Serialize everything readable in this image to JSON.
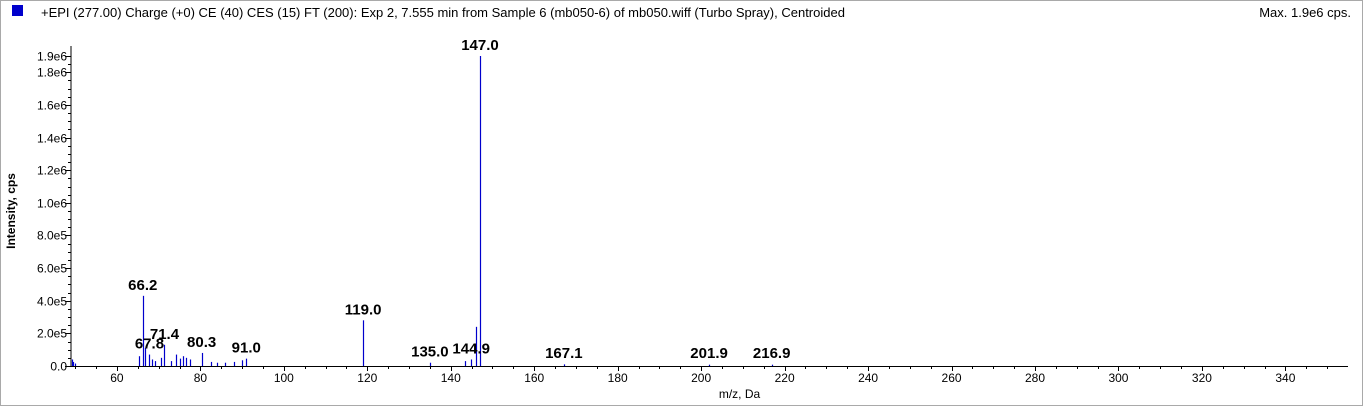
{
  "header": {
    "title": "+EPI (277.00) Charge (+0) CE (40) CES (15) FT (200): Exp 2, 7.555 min from Sample 6 (mb050-6) of mb050.wiff (Turbo Spray), Centroided",
    "max_label": "Max. 1.9e6 cps.",
    "series_color": "#0000cc"
  },
  "chart_data": {
    "type": "bar",
    "title": "+EPI (277.00) Charge (+0) CE (40) CES (15) FT (200): Exp 2, 7.555 min from Sample 6 (mb050-6) of mb050.wiff (Turbo Spray), Centroided",
    "xlabel": "m/z, Da",
    "ylabel": "Intensity, cps",
    "xlim": [
      49,
      355
    ],
    "ylim": [
      0,
      1900000
    ],
    "x_ticks": [
      60,
      80,
      100,
      120,
      140,
      160,
      180,
      200,
      220,
      240,
      260,
      280,
      300,
      320,
      340
    ],
    "y_ticks": [
      {
        "value": 0,
        "label": "0.0"
      },
      {
        "value": 200000,
        "label": "2.0e5"
      },
      {
        "value": 400000,
        "label": "4.0e5"
      },
      {
        "value": 600000,
        "label": "6.0e5"
      },
      {
        "value": 800000,
        "label": "8.0e5"
      },
      {
        "value": 1000000,
        "label": "1.0e6"
      },
      {
        "value": 1200000,
        "label": "1.2e6"
      },
      {
        "value": 1400000,
        "label": "1.4e6"
      },
      {
        "value": 1600000,
        "label": "1.6e6"
      },
      {
        "value": 1800000,
        "label": "1.8e6"
      },
      {
        "value": 1900000,
        "label": "1.9e6"
      }
    ],
    "peaks": [
      {
        "mz": 49.2,
        "intensity": 40000
      },
      {
        "mz": 49.5,
        "intensity": 25000
      },
      {
        "mz": 50.0,
        "intensity": 15000
      },
      {
        "mz": 65.2,
        "intensity": 60000
      },
      {
        "mz": 66.2,
        "intensity": 430000
      },
      {
        "mz": 66.8,
        "intensity": 110000
      },
      {
        "mz": 67.8,
        "intensity": 70000
      },
      {
        "mz": 68.4,
        "intensity": 40000
      },
      {
        "mz": 69.1,
        "intensity": 30000
      },
      {
        "mz": 70.5,
        "intensity": 50000
      },
      {
        "mz": 71.4,
        "intensity": 130000
      },
      {
        "mz": 73.0,
        "intensity": 30000
      },
      {
        "mz": 74.2,
        "intensity": 70000
      },
      {
        "mz": 75.0,
        "intensity": 45000
      },
      {
        "mz": 75.8,
        "intensity": 60000
      },
      {
        "mz": 76.6,
        "intensity": 50000
      },
      {
        "mz": 77.5,
        "intensity": 40000
      },
      {
        "mz": 80.3,
        "intensity": 80000
      },
      {
        "mz": 82.5,
        "intensity": 25000
      },
      {
        "mz": 84.0,
        "intensity": 20000
      },
      {
        "mz": 86.0,
        "intensity": 20000
      },
      {
        "mz": 88.0,
        "intensity": 25000
      },
      {
        "mz": 90.0,
        "intensity": 35000
      },
      {
        "mz": 91.0,
        "intensity": 45000
      },
      {
        "mz": 119.0,
        "intensity": 280000
      },
      {
        "mz": 135.0,
        "intensity": 20000
      },
      {
        "mz": 143.5,
        "intensity": 30000
      },
      {
        "mz": 144.9,
        "intensity": 40000
      },
      {
        "mz": 146.0,
        "intensity": 240000
      },
      {
        "mz": 147.0,
        "intensity": 1900000
      },
      {
        "mz": 167.1,
        "intensity": 10000
      },
      {
        "mz": 201.9,
        "intensity": 8000
      },
      {
        "mz": 216.9,
        "intensity": 8000
      }
    ],
    "labels": [
      {
        "mz": 66.2,
        "text": "66.2"
      },
      {
        "mz": 67.8,
        "text": "67.8"
      },
      {
        "mz": 71.4,
        "text": "71.4"
      },
      {
        "mz": 80.3,
        "text": "80.3"
      },
      {
        "mz": 91.0,
        "text": "91.0"
      },
      {
        "mz": 119.0,
        "text": "119.0"
      },
      {
        "mz": 135.0,
        "text": "135.0"
      },
      {
        "mz": 144.9,
        "text": "144.9"
      },
      {
        "mz": 147.0,
        "text": "147.0"
      },
      {
        "mz": 167.1,
        "text": "167.1"
      },
      {
        "mz": 201.9,
        "text": "201.9"
      },
      {
        "mz": 216.9,
        "text": "216.9"
      }
    ]
  }
}
